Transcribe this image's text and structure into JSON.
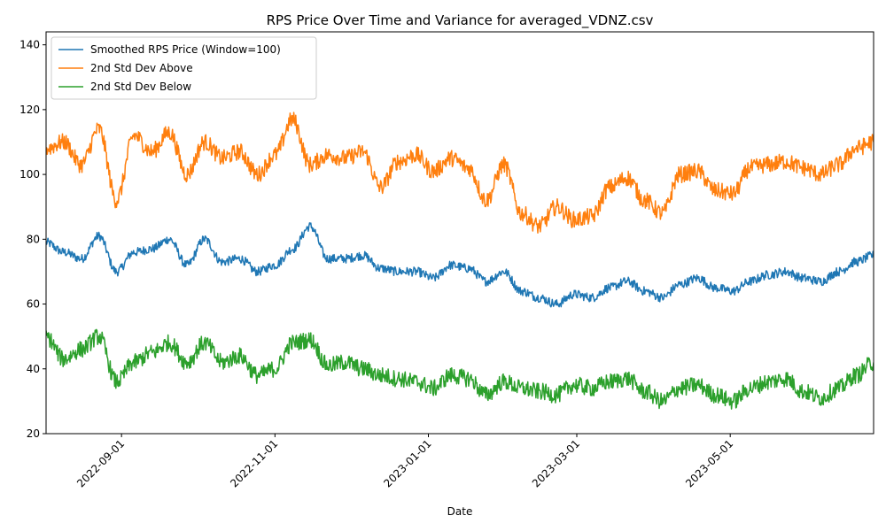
{
  "chart_data": {
    "type": "line",
    "title": "RPS Price Over Time and Variance for averaged_VDNZ.csv",
    "xlabel": "Date",
    "ylabel": "",
    "x_range": [
      "2022-08-02",
      "2023-06-27"
    ],
    "ylim": [
      20,
      144
    ],
    "x_ticks": [
      {
        "date": "2022-09-01",
        "label": "2022-09-01"
      },
      {
        "date": "2022-11-01",
        "label": "2022-11-01"
      },
      {
        "date": "2023-01-01",
        "label": "2023-01-01"
      },
      {
        "date": "2023-03-01",
        "label": "2023-03-01"
      },
      {
        "date": "2023-05-01",
        "label": "2023-05-01"
      }
    ],
    "y_ticks": [
      20,
      40,
      60,
      80,
      100,
      120,
      140
    ],
    "grid": false,
    "legend_position": "top-left",
    "x": [
      "2022-08-02",
      "2022-08-09",
      "2022-08-16",
      "2022-08-23",
      "2022-08-30",
      "2022-09-06",
      "2022-09-13",
      "2022-09-20",
      "2022-09-27",
      "2022-10-04",
      "2022-10-11",
      "2022-10-18",
      "2022-10-25",
      "2022-11-01",
      "2022-11-08",
      "2022-11-15",
      "2022-11-22",
      "2022-11-29",
      "2022-12-06",
      "2022-12-13",
      "2022-12-20",
      "2022-12-27",
      "2023-01-03",
      "2023-01-10",
      "2023-01-17",
      "2023-01-24",
      "2023-01-31",
      "2023-02-07",
      "2023-02-14",
      "2023-02-21",
      "2023-02-28",
      "2023-03-07",
      "2023-03-14",
      "2023-03-21",
      "2023-03-28",
      "2023-04-04",
      "2023-04-11",
      "2023-04-18",
      "2023-04-25",
      "2023-05-02",
      "2023-05-09",
      "2023-05-16",
      "2023-05-23",
      "2023-05-30",
      "2023-06-06",
      "2023-06-13",
      "2023-06-20",
      "2023-06-27"
    ],
    "series": [
      {
        "name": "Smoothed RPS Price (Window=100)",
        "color": "#1f77b4",
        "values": [
          79,
          76,
          74,
          81,
          70,
          76,
          77,
          80,
          72,
          80,
          73,
          74,
          70,
          72,
          77,
          84,
          74,
          74,
          75,
          71,
          70,
          70,
          68,
          72,
          71,
          67,
          70,
          64,
          62,
          60,
          63,
          62,
          65,
          67,
          64,
          62,
          66,
          68,
          65,
          64,
          67,
          69,
          70,
          68,
          67,
          70,
          73,
          75
        ]
      },
      {
        "name": "2nd Std Dev Above",
        "color": "#ff7f0e",
        "values": [
          108,
          110,
          103,
          114,
          92,
          112,
          107,
          113,
          100,
          110,
          105,
          107,
          100,
          106,
          117,
          103,
          106,
          105,
          107,
          96,
          104,
          106,
          101,
          105,
          102,
          92,
          103,
          88,
          84,
          90,
          86,
          87,
          96,
          99,
          92,
          88,
          100,
          101,
          95,
          94,
          102,
          103,
          104,
          102,
          100,
          103,
          108,
          110
        ]
      },
      {
        "name": "2nd Std Dev Below",
        "color": "#2ca02c",
        "values": [
          50,
          43,
          46,
          50,
          36,
          42,
          45,
          48,
          42,
          48,
          42,
          44,
          38,
          40,
          48,
          49,
          41,
          42,
          40,
          38,
          37,
          36,
          34,
          38,
          37,
          32,
          36,
          34,
          33,
          32,
          35,
          34,
          36,
          37,
          33,
          30,
          34,
          35,
          32,
          30,
          34,
          36,
          37,
          33,
          31,
          34,
          38,
          42
        ]
      }
    ]
  }
}
